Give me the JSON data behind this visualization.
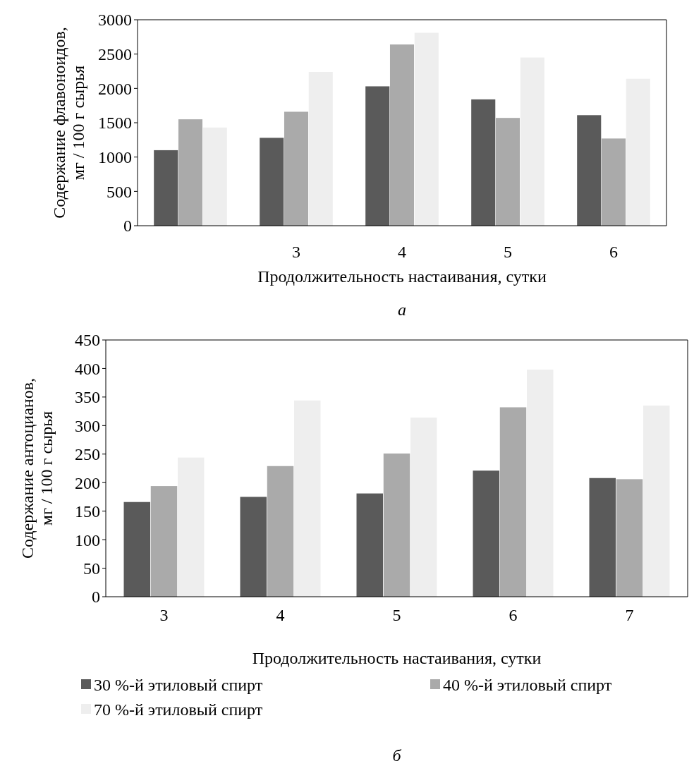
{
  "chart_data": [
    {
      "type": "bar",
      "categories": [
        null,
        "3",
        "4",
        "5",
        "6"
      ],
      "xlabel": "Продолжительность настаивания, сутки",
      "ylabel": "Содержание флавоноидов, мг  / 100 г сырья",
      "ylim": [
        0,
        3000
      ],
      "yticks": [
        0,
        500,
        1000,
        1500,
        2000,
        2500,
        3000
      ],
      "grid": false,
      "annotations": [
        "а"
      ],
      "series": [
        {
          "color": "#5a5a5a",
          "values": [
            1100,
            1280,
            2030,
            1840,
            1610
          ]
        },
        {
          "color": "#aaaaaa",
          "values": [
            1550,
            1660,
            2640,
            1570,
            1270
          ]
        },
        {
          "color": "#eeeeee",
          "values": [
            1430,
            2240,
            2810,
            2450,
            2140
          ]
        }
      ]
    },
    {
      "type": "bar",
      "categories": [
        "3",
        "4",
        "5",
        "6",
        "7"
      ],
      "xlabel": "Продолжительность настаивания, сутки",
      "ylabel": "Содержание антоцианов, мг  / 100 г сырья",
      "ylim": [
        0,
        450
      ],
      "yticks": [
        0,
        50,
        100,
        150,
        200,
        250,
        300,
        350,
        400,
        450
      ],
      "grid": false,
      "legend": "bottom",
      "annotations": [
        "б"
      ],
      "series": [
        {
          "name": "30 %-й этиловый спирт",
          "color": "#5a5a5a",
          "values": [
            166,
            175,
            181,
            221,
            208
          ]
        },
        {
          "name": "40 %-й этиловый спирт",
          "color": "#aaaaaa",
          "values": [
            194,
            229,
            251,
            332,
            206
          ]
        },
        {
          "name": "70 %-й этиловый спирт",
          "color": "#eeeeee",
          "values": [
            244,
            344,
            314,
            398,
            335
          ]
        }
      ]
    }
  ]
}
